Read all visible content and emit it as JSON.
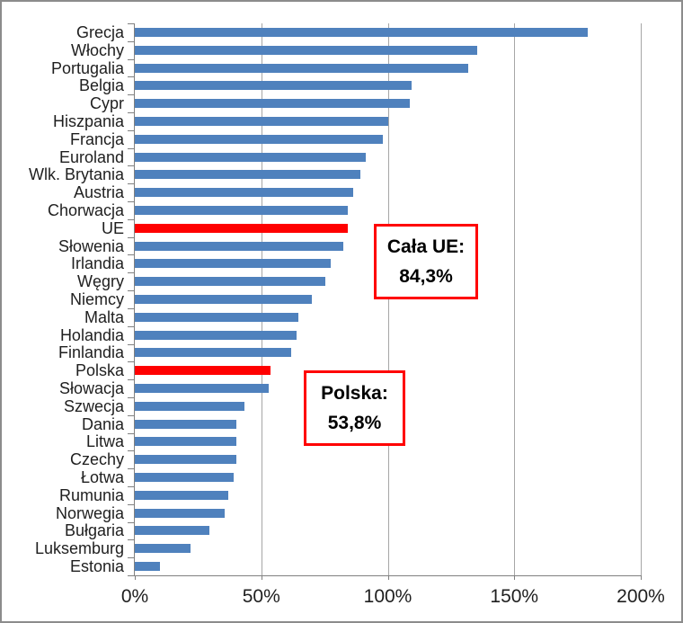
{
  "chart_data": {
    "type": "bar",
    "orientation": "horizontal",
    "title": "",
    "xlabel": "",
    "ylabel": "",
    "xlim": [
      0,
      200
    ],
    "grid": true,
    "categories": [
      "Grecja",
      "Włochy",
      "Portugalia",
      "Belgia",
      "Cypr",
      "Hiszpania",
      "Francja",
      "Euroland",
      "Wlk. Brytania",
      "Austria",
      "Chorwacja",
      "UE",
      "Słowenia",
      "Irlandia",
      "Węgry",
      "Niemcy",
      "Malta",
      "Holandia",
      "Finlandia",
      "Polska",
      "Słowacja",
      "Szwecja",
      "Dania",
      "Litwa",
      "Czechy",
      "Łotwa",
      "Rumunia",
      "Norwegia",
      "Bułgaria",
      "Luksemburg",
      "Estonia"
    ],
    "values": [
      179.2,
      135.4,
      131.8,
      109.5,
      108.8,
      100.2,
      98.1,
      91.2,
      89.0,
      86.5,
      84.2,
      84.3,
      82.3,
      77.6,
      75.4,
      70.1,
      64.8,
      63.9,
      61.7,
      53.8,
      53.0,
      43.3,
      40.2,
      40.3,
      40.0,
      39.0,
      37.0,
      35.5,
      29.4,
      22.0,
      9.8
    ],
    "bar_color": "#4f81bd",
    "highlight_color": "#ff0000",
    "highlight_indices": [
      11,
      19
    ],
    "x_ticks": [
      {
        "label": "0%",
        "value": 0
      },
      {
        "label": "50%",
        "value": 50
      },
      {
        "label": "100%",
        "value": 100
      },
      {
        "label": "150%",
        "value": 150
      },
      {
        "label": "200%",
        "value": 200
      }
    ],
    "legend": null,
    "annotations": [
      {
        "target": "UE",
        "line1": "Cała UE:",
        "line2": "84,3%"
      },
      {
        "target": "Polska",
        "line1": "Polska:",
        "line2": "53,8%"
      }
    ]
  },
  "annotation_ue": {
    "line1": "Cała UE:",
    "line2": "84,3%"
  },
  "annotation_polska": {
    "line1": "Polska:",
    "line2": "53,8%"
  },
  "colors": {
    "bar_blue": "#4f81bd",
    "bar_red": "#ff0000",
    "gridline": "#a6a6a6",
    "axis": "#808080",
    "text": "#1f1f1f",
    "annotation_border": "#ff0000",
    "frame_border": "#8c8c8c",
    "background": "#ffffff"
  }
}
